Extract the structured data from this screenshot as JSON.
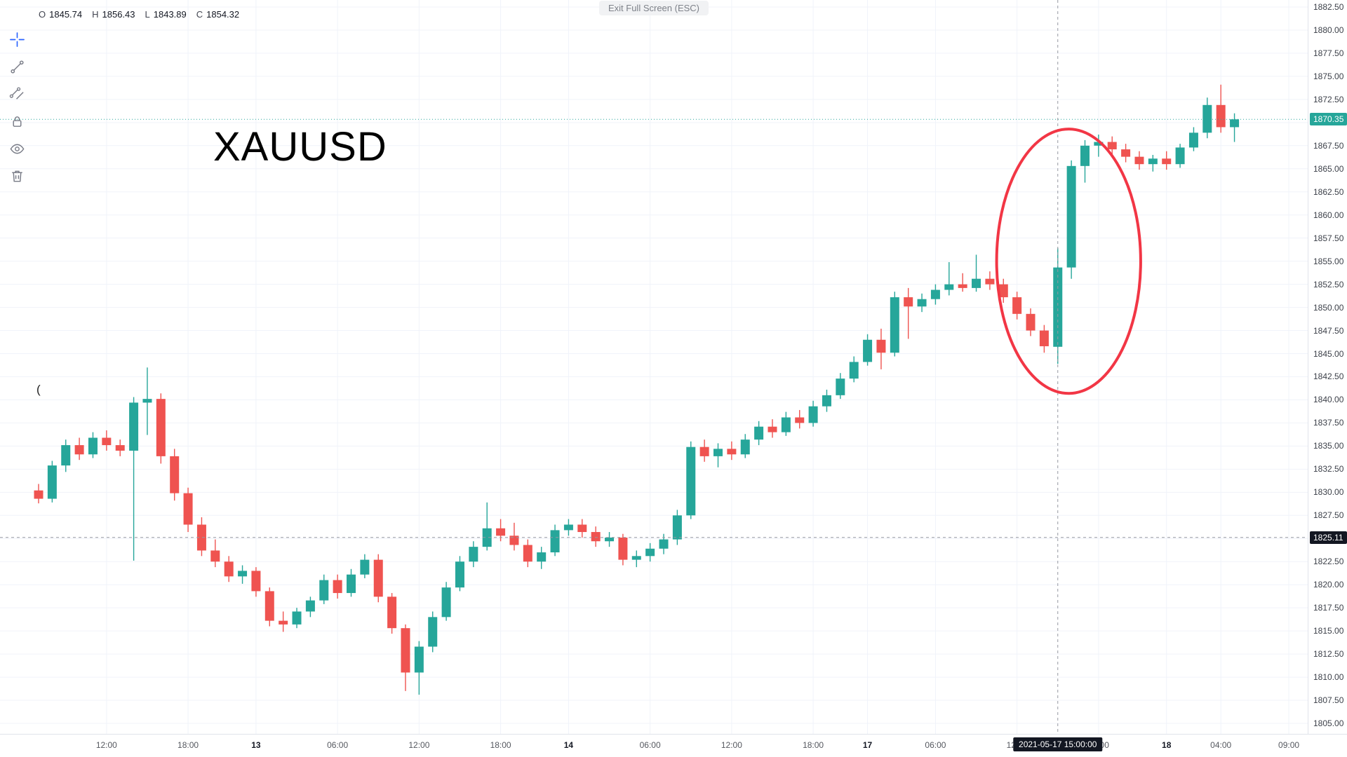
{
  "tooltip": "Exit Full Screen (ESC)",
  "watermark": "XAUUSD",
  "stray_glyph": "(",
  "legend": {
    "open_label": "O",
    "open_value": "1845.74",
    "high_label": "H",
    "high_value": "1856.43",
    "low_label": "L",
    "low_value": "1843.89",
    "close_label": "C",
    "close_value": "1854.32"
  },
  "toolbar": {
    "tools": [
      {
        "name": "crosshair",
        "selected": true
      },
      {
        "name": "trend-line",
        "selected": false
      },
      {
        "name": "parallel-channel",
        "selected": false
      },
      {
        "name": "lock",
        "selected": false
      },
      {
        "name": "eye",
        "selected": false
      },
      {
        "name": "trash",
        "selected": false
      }
    ]
  },
  "chart_data": {
    "type": "candlestick",
    "title": "XAUUSD",
    "ylim": [
      1804.0,
      1883.3
    ],
    "grid": true,
    "colors": {
      "up": "#26a69a",
      "down": "#ef5350",
      "crosshair": "#9598a1",
      "annotation": "#f23645"
    },
    "last_price": 1870.35,
    "last_price_text": "1870.35",
    "crosshair": {
      "index": 75,
      "price": "1825.11",
      "time": "2021-05-17 15:00:00"
    },
    "annotation_ellipse": {
      "index": 75.8,
      "price": 1855.0,
      "rx_candles": 5.3,
      "ry_price": 14.3,
      "color": "#f23645"
    },
    "price_labels": [
      "1882.50",
      "1880.00",
      "1877.50",
      "1875.00",
      "1872.50",
      "1870.00",
      "1867.50",
      "1865.00",
      "1862.50",
      "1860.00",
      "1857.50",
      "1855.00",
      "1852.50",
      "1850.00",
      "1847.50",
      "1845.00",
      "1842.50",
      "1840.00",
      "1837.50",
      "1835.00",
      "1832.50",
      "1830.00",
      "1827.50",
      "1825.00",
      "1822.50",
      "1820.00",
      "1817.50",
      "1815.00",
      "1812.50",
      "1810.00",
      "1807.50",
      "1805.00"
    ],
    "time_labels": [
      {
        "i": 5,
        "t": "12:00",
        "b": false
      },
      {
        "i": 11,
        "t": "18:00",
        "b": false
      },
      {
        "i": 16,
        "t": "13",
        "b": true
      },
      {
        "i": 22,
        "t": "06:00",
        "b": false
      },
      {
        "i": 28,
        "t": "12:00",
        "b": false
      },
      {
        "i": 34,
        "t": "18:00",
        "b": false
      },
      {
        "i": 39,
        "t": "14",
        "b": true
      },
      {
        "i": 45,
        "t": "06:00",
        "b": false
      },
      {
        "i": 51,
        "t": "12:00",
        "b": false
      },
      {
        "i": 57,
        "t": "18:00",
        "b": false
      },
      {
        "i": 61,
        "t": "17",
        "b": true
      },
      {
        "i": 66,
        "t": "06:00",
        "b": false
      },
      {
        "i": 72,
        "t": "12:00",
        "b": false
      },
      {
        "i": 78,
        "t": "18:00",
        "b": false
      },
      {
        "i": 83,
        "t": "18",
        "b": true
      },
      {
        "i": 87,
        "t": "04:00",
        "b": false
      },
      {
        "i": 92,
        "t": "09:00",
        "b": false
      }
    ],
    "candles": [
      [
        1830.2,
        1830.9,
        1828.8,
        1829.3
      ],
      [
        1829.3,
        1833.4,
        1828.9,
        1832.9
      ],
      [
        1832.9,
        1835.7,
        1832.2,
        1835.1
      ],
      [
        1835.1,
        1835.9,
        1833.5,
        1834.1
      ],
      [
        1834.1,
        1836.5,
        1833.7,
        1835.9
      ],
      [
        1835.9,
        1836.7,
        1834.5,
        1835.1
      ],
      [
        1835.1,
        1835.7,
        1833.9,
        1834.5
      ],
      [
        1834.5,
        1840.3,
        1822.6,
        1839.7
      ],
      [
        1839.7,
        1843.5,
        1836.2,
        1840.1
      ],
      [
        1840.1,
        1840.7,
        1833.1,
        1833.9
      ],
      [
        1833.9,
        1834.7,
        1829.1,
        1829.9
      ],
      [
        1829.9,
        1830.5,
        1825.7,
        1826.5
      ],
      [
        1826.5,
        1827.3,
        1823.1,
        1823.7
      ],
      [
        1823.7,
        1824.9,
        1821.9,
        1822.5
      ],
      [
        1822.5,
        1823.1,
        1820.3,
        1820.9
      ],
      [
        1820.9,
        1822.1,
        1820.1,
        1821.5
      ],
      [
        1821.5,
        1821.9,
        1818.7,
        1819.3
      ],
      [
        1819.3,
        1819.7,
        1815.5,
        1816.1
      ],
      [
        1816.1,
        1817.1,
        1814.9,
        1815.7
      ],
      [
        1815.7,
        1817.5,
        1815.3,
        1817.1
      ],
      [
        1817.1,
        1818.7,
        1816.5,
        1818.3
      ],
      [
        1818.3,
        1821.1,
        1817.9,
        1820.5
      ],
      [
        1820.5,
        1821.1,
        1818.5,
        1819.1
      ],
      [
        1819.1,
        1821.7,
        1818.7,
        1821.1
      ],
      [
        1821.1,
        1823.3,
        1820.7,
        1822.7
      ],
      [
        1822.7,
        1823.3,
        1818.1,
        1818.7
      ],
      [
        1818.7,
        1819.1,
        1814.7,
        1815.3
      ],
      [
        1815.3,
        1815.7,
        1808.5,
        1810.5
      ],
      [
        1810.5,
        1813.9,
        1808.1,
        1813.3
      ],
      [
        1813.3,
        1817.1,
        1812.7,
        1816.5
      ],
      [
        1816.5,
        1820.3,
        1816.1,
        1819.7
      ],
      [
        1819.7,
        1823.1,
        1819.3,
        1822.5
      ],
      [
        1822.5,
        1824.7,
        1821.9,
        1824.1
      ],
      [
        1824.1,
        1828.9,
        1823.7,
        1826.1
      ],
      [
        1826.1,
        1827.1,
        1824.7,
        1825.3
      ],
      [
        1825.3,
        1826.7,
        1823.7,
        1824.3
      ],
      [
        1824.3,
        1824.9,
        1821.9,
        1822.5
      ],
      [
        1822.5,
        1824.1,
        1821.7,
        1823.5
      ],
      [
        1823.5,
        1826.5,
        1823.1,
        1825.9
      ],
      [
        1825.9,
        1827.1,
        1825.3,
        1826.5
      ],
      [
        1826.5,
        1827.1,
        1825.1,
        1825.7
      ],
      [
        1825.7,
        1826.3,
        1824.1,
        1824.7
      ],
      [
        1824.7,
        1825.7,
        1824.1,
        1825.1
      ],
      [
        1825.1,
        1825.5,
        1822.1,
        1822.7
      ],
      [
        1822.7,
        1823.7,
        1821.9,
        1823.1
      ],
      [
        1823.1,
        1824.5,
        1822.5,
        1823.9
      ],
      [
        1823.9,
        1825.5,
        1823.3,
        1824.9
      ],
      [
        1824.9,
        1828.1,
        1824.3,
        1827.5
      ],
      [
        1827.5,
        1835.5,
        1827.1,
        1834.9
      ],
      [
        1834.9,
        1835.7,
        1833.3,
        1833.9
      ],
      [
        1833.9,
        1835.3,
        1832.7,
        1834.7
      ],
      [
        1834.7,
        1835.5,
        1833.5,
        1834.1
      ],
      [
        1834.1,
        1836.3,
        1833.7,
        1835.7
      ],
      [
        1835.7,
        1837.7,
        1835.1,
        1837.1
      ],
      [
        1837.1,
        1837.9,
        1835.9,
        1836.5
      ],
      [
        1836.5,
        1838.7,
        1836.1,
        1838.1
      ],
      [
        1838.1,
        1838.9,
        1836.9,
        1837.5
      ],
      [
        1837.5,
        1839.9,
        1837.1,
        1839.3
      ],
      [
        1839.3,
        1841.1,
        1838.7,
        1840.5
      ],
      [
        1840.5,
        1842.9,
        1840.1,
        1842.3
      ],
      [
        1842.3,
        1844.7,
        1841.9,
        1844.1
      ],
      [
        1844.1,
        1847.1,
        1843.7,
        1846.5
      ],
      [
        1846.5,
        1847.7,
        1843.3,
        1845.1
      ],
      [
        1845.1,
        1851.7,
        1844.7,
        1851.1
      ],
      [
        1851.1,
        1852.1,
        1846.6,
        1850.1
      ],
      [
        1850.1,
        1851.5,
        1849.5,
        1850.9
      ],
      [
        1850.9,
        1852.5,
        1850.3,
        1851.9
      ],
      [
        1851.9,
        1854.9,
        1851.3,
        1852.5
      ],
      [
        1852.5,
        1853.7,
        1851.7,
        1852.1
      ],
      [
        1852.1,
        1855.7,
        1851.7,
        1853.1
      ],
      [
        1853.1,
        1853.9,
        1851.9,
        1852.5
      ],
      [
        1852.5,
        1853.1,
        1850.5,
        1851.1
      ],
      [
        1851.1,
        1851.7,
        1848.7,
        1849.3
      ],
      [
        1849.3,
        1849.9,
        1846.9,
        1847.5
      ],
      [
        1847.5,
        1848.1,
        1845.1,
        1845.8
      ],
      [
        1845.74,
        1856.43,
        1843.89,
        1854.32
      ],
      [
        1854.32,
        1865.9,
        1853.1,
        1865.3
      ],
      [
        1865.3,
        1868.1,
        1863.5,
        1867.5
      ],
      [
        1867.5,
        1868.7,
        1866.3,
        1867.9
      ],
      [
        1867.9,
        1868.5,
        1866.5,
        1867.1
      ],
      [
        1867.1,
        1867.7,
        1865.7,
        1866.3
      ],
      [
        1866.3,
        1866.9,
        1864.9,
        1865.5
      ],
      [
        1865.5,
        1866.5,
        1864.7,
        1866.1
      ],
      [
        1866.1,
        1866.9,
        1864.9,
        1865.5
      ],
      [
        1865.5,
        1867.7,
        1865.1,
        1867.3
      ],
      [
        1867.3,
        1869.5,
        1866.9,
        1868.9
      ],
      [
        1868.9,
        1872.7,
        1868.3,
        1871.9
      ],
      [
        1871.9,
        1874.1,
        1868.9,
        1869.5
      ],
      [
        1869.5,
        1871.0,
        1867.9,
        1870.35
      ]
    ]
  }
}
